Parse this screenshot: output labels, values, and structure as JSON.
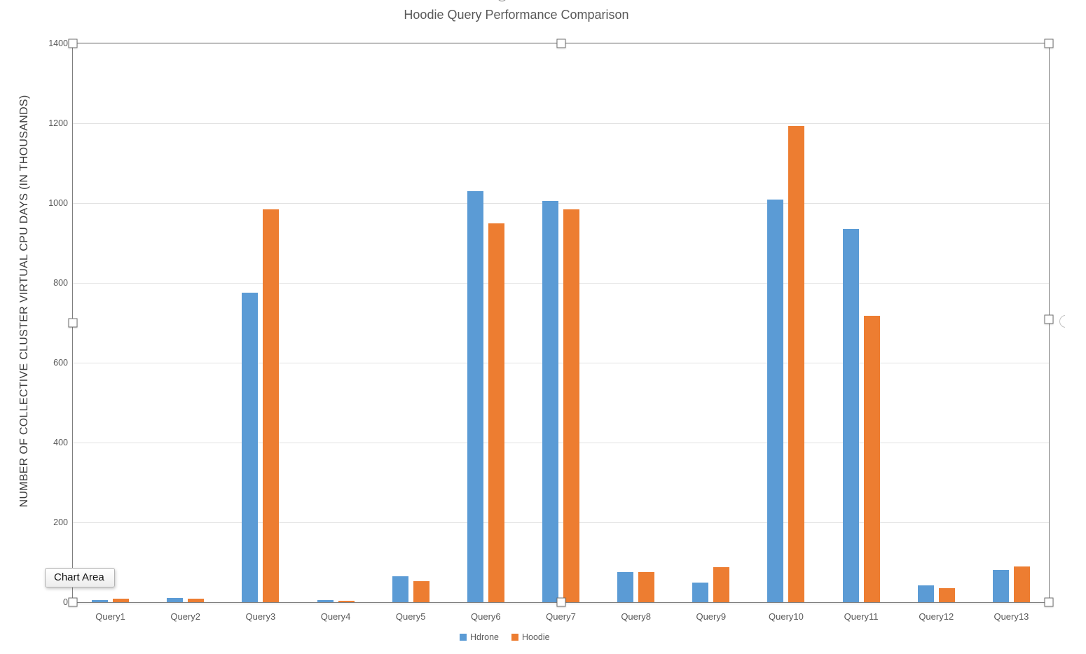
{
  "title": "Hoodie Query Performance Comparison",
  "tooltip": {
    "label": "Chart Area"
  },
  "colors": {
    "series_hdrone": "#5b9bd5",
    "series_hoodie": "#ed7d31",
    "text_gray": "#595959",
    "gridline": "#e2e2e2",
    "frame": "#7f7f7f"
  },
  "chart_data": {
    "type": "bar",
    "title": "Hoodie Query Performance Comparison",
    "xlabel": "",
    "ylabel": "NUMBER OF COLLECTIVE CLUSTER VIRTUAL CPU DAYS (IN THOUSANDS)",
    "categories": [
      "Query1",
      "Query2",
      "Query3",
      "Query4",
      "Query5",
      "Query6",
      "Query7",
      "Query8",
      "Query9",
      "Query10",
      "Query11",
      "Query12",
      "Query13"
    ],
    "series": [
      {
        "name": "Hdrone",
        "color": "#5b9bd5",
        "values": [
          5,
          10,
          775,
          5,
          65,
          1030,
          1005,
          75,
          50,
          1009,
          935,
          42,
          81
        ]
      },
      {
        "name": "Hoodie",
        "color": "#ed7d31",
        "values": [
          9,
          9,
          985,
          4,
          53,
          950,
          985,
          75,
          88,
          1193,
          718,
          35,
          89
        ]
      }
    ],
    "ylim": [
      0,
      1400
    ],
    "yticks": [
      0,
      200,
      400,
      600,
      800,
      1000,
      1200,
      1400
    ],
    "grid": true,
    "legend_position": "bottom"
  }
}
